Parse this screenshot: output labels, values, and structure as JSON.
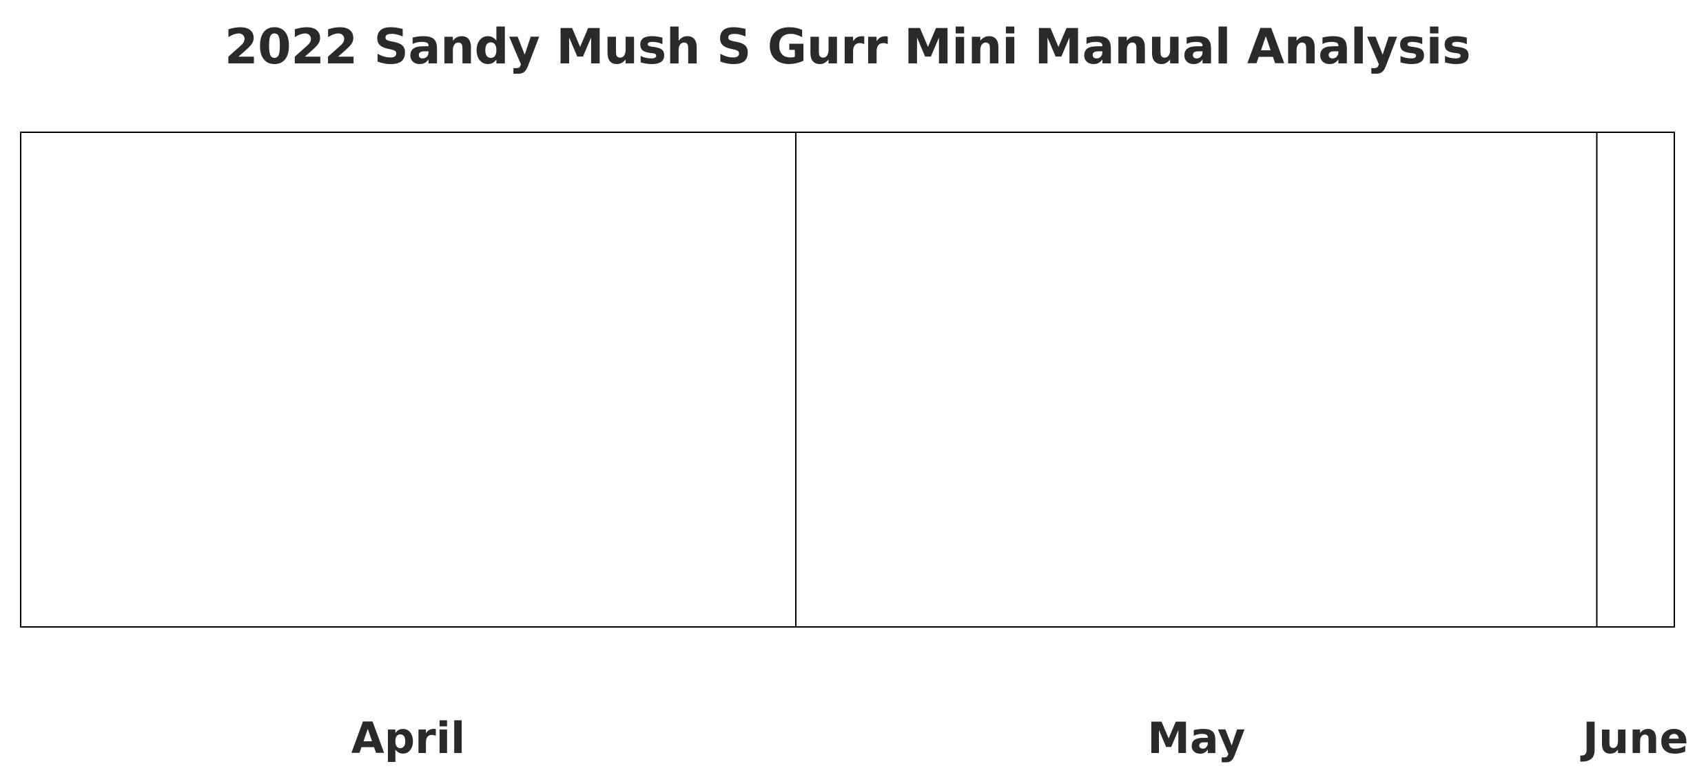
{
  "chart_data": {
    "type": "timeline",
    "title": "2022 Sandy Mush S Gurr Mini Manual Analysis",
    "x": {
      "type": "date",
      "range": [
        "2022-04-01",
        "2022-06-04"
      ]
    },
    "months": [
      {
        "label": "April",
        "start": "2022-04-01",
        "end": "2022-05-01"
      },
      {
        "label": "May",
        "start": "2022-05-01",
        "end": "2022-06-01"
      },
      {
        "label": "June",
        "start": "2022-06-01",
        "end": "2022-06-04"
      }
    ],
    "series": [],
    "grid": false,
    "legend": "none"
  }
}
